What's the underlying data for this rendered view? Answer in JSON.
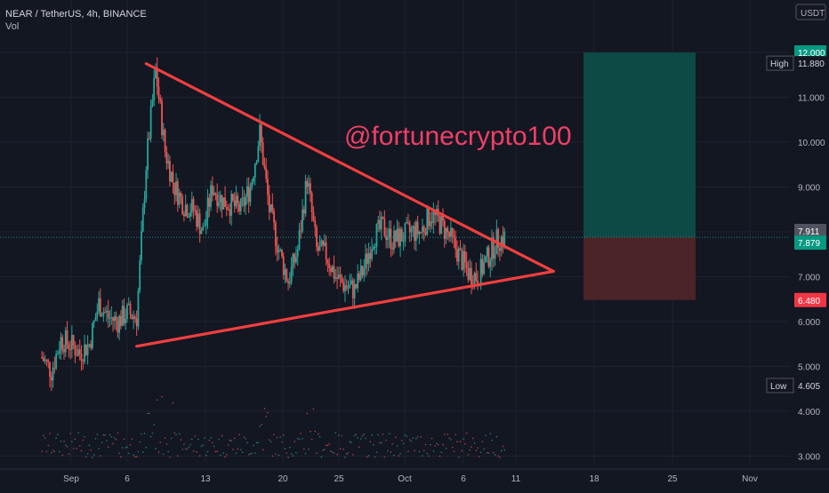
{
  "header": {
    "symbol_line": "NEAR / TetherUS, 4h, BINANCE",
    "indicator": "Vol"
  },
  "price_axis": {
    "currency": "USDT",
    "ticks": [
      "12.000",
      "11.000",
      "10.000",
      "9.000",
      "8.000",
      "7.000",
      "6.000",
      "5.000",
      "4.000",
      "3.000"
    ]
  },
  "watermark_text": "@fortunecrypto100",
  "price_tags": {
    "target": "12.000",
    "high_label": "High",
    "high_value": "11.880",
    "last_close": "7.911",
    "current": "7.879",
    "stop": "6.480",
    "low_label": "Low",
    "low_value": "4.605"
  },
  "time_axis": {
    "labels": [
      "Sep",
      "6",
      "13",
      "20",
      "25",
      "Oct",
      "6",
      "11",
      "18",
      "25",
      "Nov"
    ]
  },
  "colors": {
    "background": "#131722",
    "up": "#26a69a",
    "down": "#ef5350",
    "pattern_lines": "#f23f3f",
    "target_zone": "#0e4a45",
    "stop_zone": "#4a2427",
    "grid": "#1e222d"
  },
  "chart_data": {
    "type": "candlestick",
    "title": "NEAR / TetherUS, 4h, BINANCE",
    "pair": "NEAR/USDT",
    "interval": "4h",
    "exchange": "BINANCE",
    "ylim": [
      2.8,
      12.6
    ],
    "x_ticks": [
      "Sep",
      "6",
      "13",
      "20",
      "25",
      "Oct",
      "6",
      "11",
      "18",
      "25",
      "Nov"
    ],
    "close_path": [
      {
        "x": "Aug 28",
        "y": 5.2
      },
      {
        "x": "Aug 29",
        "y": 4.9
      },
      {
        "x": "Aug 30",
        "y": 5.6
      },
      {
        "x": "Aug 31",
        "y": 5.5
      },
      {
        "x": "Sep 1",
        "y": 5.3
      },
      {
        "x": "Sep 2",
        "y": 5.5
      },
      {
        "x": "Sep 3",
        "y": 6.4
      },
      {
        "x": "Sep 4",
        "y": 6.1
      },
      {
        "x": "Sep 5",
        "y": 6.0
      },
      {
        "x": "Sep 6",
        "y": 6.2
      },
      {
        "x": "Sep 7",
        "y": 6.1
      },
      {
        "x": "Sep 8",
        "y": 9.5
      },
      {
        "x": "Sep 9",
        "y": 11.6
      },
      {
        "x": "Sep 10",
        "y": 9.8
      },
      {
        "x": "Sep 11",
        "y": 9.0
      },
      {
        "x": "Sep 12",
        "y": 8.6
      },
      {
        "x": "Sep 13",
        "y": 8.5
      },
      {
        "x": "Sep 14",
        "y": 8.0
      },
      {
        "x": "Sep 15",
        "y": 9.0
      },
      {
        "x": "Sep 16",
        "y": 8.7
      },
      {
        "x": "Sep 17",
        "y": 8.6
      },
      {
        "x": "Sep 18",
        "y": 8.5
      },
      {
        "x": "Sep 19",
        "y": 9.0
      },
      {
        "x": "Sep 20",
        "y": 10.2
      },
      {
        "x": "Sep 21",
        "y": 8.5
      },
      {
        "x": "Sep 22",
        "y": 7.6
      },
      {
        "x": "Sep 23",
        "y": 6.9
      },
      {
        "x": "Sep 24",
        "y": 7.6
      },
      {
        "x": "Sep 25",
        "y": 9.2
      },
      {
        "x": "Sep 26",
        "y": 7.6
      },
      {
        "x": "Sep 27",
        "y": 7.5
      },
      {
        "x": "Sep 28",
        "y": 7.0
      },
      {
        "x": "Sep 29",
        "y": 6.8
      },
      {
        "x": "Sep 30",
        "y": 6.7
      },
      {
        "x": "Oct 1",
        "y": 7.2
      },
      {
        "x": "Oct 2",
        "y": 7.9
      },
      {
        "x": "Oct 3",
        "y": 8.1
      },
      {
        "x": "Oct 4",
        "y": 7.8
      },
      {
        "x": "Oct 5",
        "y": 7.9
      },
      {
        "x": "Oct 6",
        "y": 8.0
      },
      {
        "x": "Oct 7",
        "y": 8.0
      },
      {
        "x": "Oct 8",
        "y": 8.4
      },
      {
        "x": "Oct 9",
        "y": 8.2
      },
      {
        "x": "Oct 10",
        "y": 7.9
      },
      {
        "x": "Oct 11",
        "y": 7.5
      },
      {
        "x": "Oct 12",
        "y": 7.1
      },
      {
        "x": "Oct 13",
        "y": 7.0
      },
      {
        "x": "Oct 14",
        "y": 7.4
      },
      {
        "x": "Oct 15",
        "y": 7.8
      },
      {
        "x": "Oct 16",
        "y": 7.9
      }
    ],
    "pattern": {
      "type": "symmetrical triangle",
      "upper_line": [
        {
          "x": "Sep 8",
          "y": 11.75
        },
        {
          "x": "Oct 21",
          "y": 7.12
        }
      ],
      "lower_line": [
        {
          "x": "Sep 7",
          "y": 5.45
        },
        {
          "x": "Oct 21",
          "y": 7.12
        }
      ]
    },
    "position": {
      "entry": 7.879,
      "target": 12.0,
      "stop": 6.48
    },
    "high": 11.88,
    "low": 4.605,
    "last_close": 7.911,
    "current_price": 7.879,
    "grid": true
  }
}
